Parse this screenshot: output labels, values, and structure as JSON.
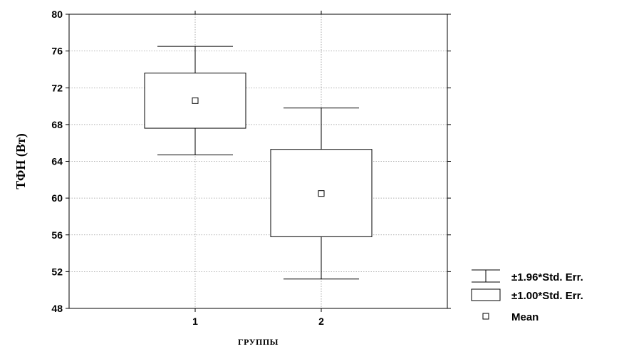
{
  "chart_data": {
    "type": "box",
    "xlabel": "ГРУППЫ",
    "ylabel": "ТФН (Вт)",
    "categories": [
      "1",
      "2"
    ],
    "ylim": [
      48,
      80
    ],
    "yticks": [
      48,
      52,
      56,
      60,
      64,
      68,
      72,
      76,
      80
    ],
    "grid": true,
    "legend_position": "bottom-right",
    "groups": [
      {
        "category": "1",
        "mean": 70.6,
        "box_low": 67.6,
        "box_high": 73.6,
        "whisker_low": 64.7,
        "whisker_high": 76.5
      },
      {
        "category": "2",
        "mean": 60.5,
        "box_low": 55.8,
        "box_high": 65.3,
        "whisker_low": 51.2,
        "whisker_high": 69.8
      }
    ],
    "legend": [
      {
        "symbol": "whisker",
        "label": "±1.96*Std. Err."
      },
      {
        "symbol": "box",
        "label": "±1.00*Std. Err."
      },
      {
        "symbol": "mean",
        "label": "Mean"
      }
    ]
  }
}
